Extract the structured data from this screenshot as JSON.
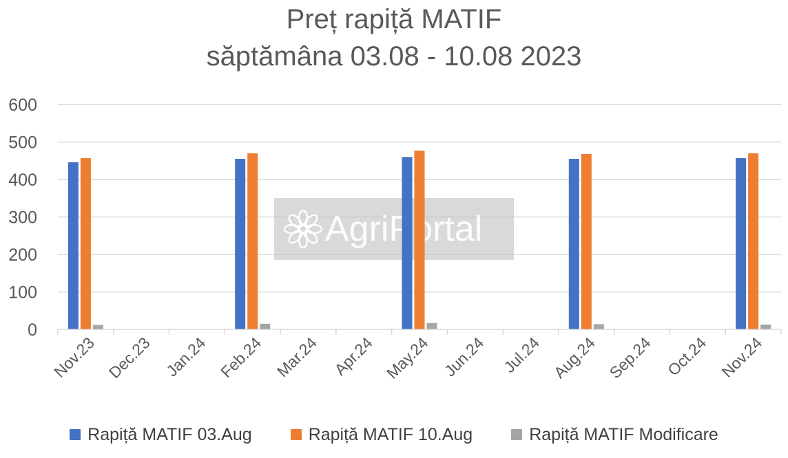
{
  "chart_data": {
    "type": "bar",
    "title": "Preț rapiță MATIF",
    "subtitle": "săptămâna 03.08 - 10.08 2023",
    "xlabel": "",
    "ylabel": "",
    "ylim": [
      0,
      600
    ],
    "yticks": [
      0,
      100,
      200,
      300,
      400,
      500,
      600
    ],
    "grid": true,
    "legend_position": "bottom",
    "categories": [
      "Nov.23",
      "Dec.23",
      "Jan.24",
      "Feb.24",
      "Mar.24",
      "Apr.24",
      "May.24",
      "Jun.24",
      "Jul.24",
      "Aug.24",
      "Sep.24",
      "Oct.24",
      "Nov.24"
    ],
    "series": [
      {
        "name": "Rapiță MATIF 03.Aug",
        "color": "#4472C4",
        "values": [
          446,
          null,
          null,
          455,
          null,
          null,
          460,
          null,
          null,
          455,
          null,
          null,
          457
        ]
      },
      {
        "name": "Rapiță MATIF 10.Aug",
        "color": "#ED7D31",
        "values": [
          457,
          null,
          null,
          470,
          null,
          null,
          477,
          null,
          null,
          468,
          null,
          null,
          470
        ]
      },
      {
        "name": "Rapiță MATIF Modificare",
        "color": "#A5A5A5",
        "values": [
          12,
          null,
          null,
          15,
          null,
          null,
          17,
          null,
          null,
          14,
          null,
          null,
          13
        ]
      }
    ]
  },
  "watermark": {
    "text": "AgriPortal",
    "icon": "flower-logo-icon"
  }
}
